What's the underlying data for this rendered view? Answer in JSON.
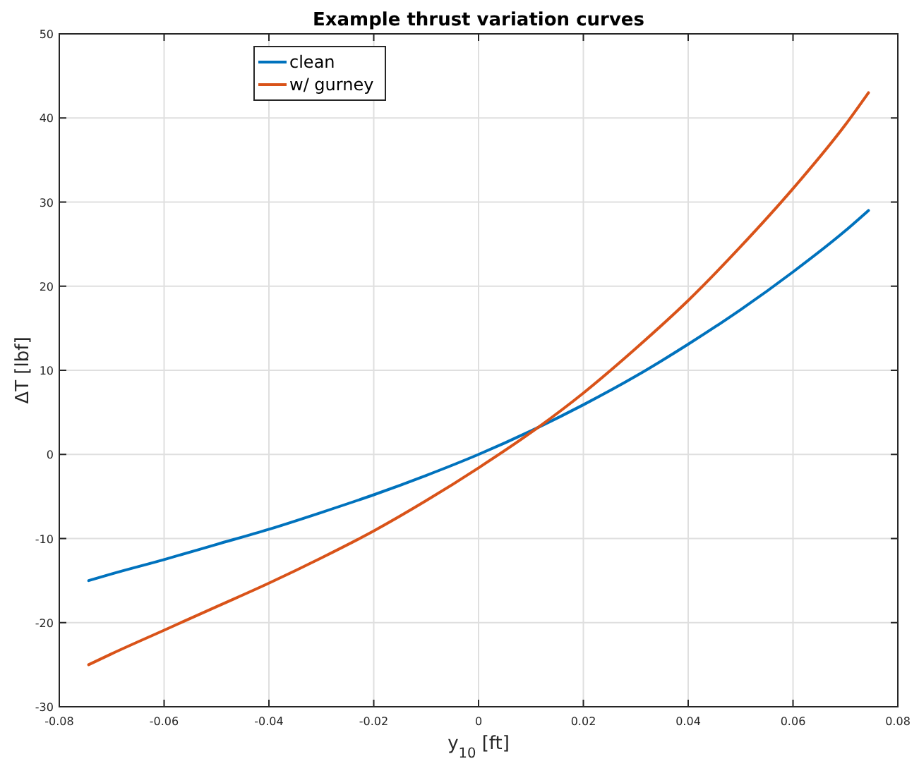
{
  "chart_data": {
    "type": "line",
    "title": "Example thrust variation curves",
    "xlabel": "y$_{10}$ [ft]",
    "ylabel": "ΔT [lbf]",
    "xlim": [
      -0.08,
      0.08
    ],
    "xticks": [
      -0.08,
      -0.06,
      -0.04,
      -0.02,
      0,
      0.02,
      0.04,
      0.06,
      0.08
    ],
    "ylim": [
      -30,
      50
    ],
    "yticks": [
      -30,
      -20,
      -10,
      0,
      10,
      20,
      30,
      40,
      50
    ],
    "grid": true,
    "legend": "top left",
    "line_style": "solid",
    "marker": "none",
    "series": [
      {
        "name": "clean",
        "color": "#0072bd",
        "x": [
          -0.0744,
          -0.07,
          -0.06,
          -0.05,
          -0.04,
          -0.03,
          -0.02,
          -0.01,
          0,
          0.01,
          0.02,
          0.03,
          0.04,
          0.05,
          0.06,
          0.07,
          0.0744
        ],
        "values": [
          -15,
          -14.2,
          -12.5,
          -10.7,
          -8.9,
          -6.9,
          -4.8,
          -2.5,
          0,
          2.8,
          5.9,
          9.3,
          13.1,
          17.2,
          21.7,
          26.6,
          29
        ]
      },
      {
        "name": "w/ gurney",
        "color": "#d95319",
        "x": [
          -0.0744,
          -0.07,
          -0.06,
          -0.05,
          -0.04,
          -0.03,
          -0.02,
          -0.01,
          0,
          0.01,
          0.02,
          0.03,
          0.04,
          0.05,
          0.06,
          0.07,
          0.0744
        ],
        "values": [
          -25,
          -23.7,
          -20.9,
          -18.1,
          -15.3,
          -12.3,
          -9.1,
          -5.5,
          -1.6,
          2.6,
          7.3,
          12.6,
          18.3,
          24.7,
          31.6,
          39.2,
          43
        ]
      }
    ]
  }
}
